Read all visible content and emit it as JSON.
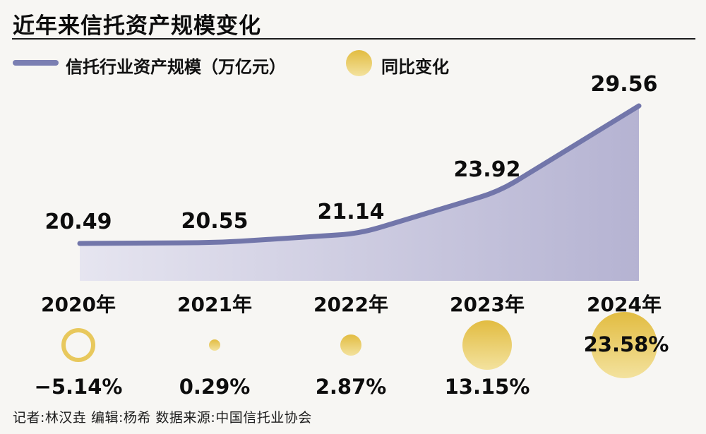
{
  "title": "近年来信托资产规模变化",
  "legend": {
    "line_label": "信托行业资产规模（万亿元）",
    "bubble_label": "同比变化"
  },
  "chart_data": {
    "type": "area",
    "categories": [
      "2020年",
      "2021年",
      "2022年",
      "2023年",
      "2024年"
    ],
    "series": [
      {
        "name": "信托行业资产规模（万亿元）",
        "type": "area-line",
        "values": [
          20.49,
          20.55,
          21.14,
          23.92,
          29.56
        ],
        "labels": [
          "20.49",
          "20.55",
          "21.14",
          "23.92",
          "29.56"
        ]
      },
      {
        "name": "同比变化",
        "type": "bubble",
        "values": [
          -5.14,
          0.29,
          2.87,
          13.15,
          23.58
        ],
        "labels": [
          "−5.14%",
          "0.29%",
          "2.87%",
          "13.15%",
          "23.58%"
        ],
        "negative_style": "hollow-ring"
      }
    ],
    "ylim": [
      18,
      30
    ],
    "grid": false,
    "legend_position": "top",
    "bubble_radius_px": [
      24,
      8,
      15,
      35,
      47
    ],
    "colors": {
      "line": "#7276aa",
      "legend_line": "#7b7fb2",
      "area_left": "#e6e5f0",
      "area_right": "#b5b3d2",
      "bubble_top": "#e2bc41",
      "bubble_bottom": "#f3e29e",
      "bubble_ring": "#e8c85c",
      "background": "#f7f6f3",
      "text": "#0d0d0d"
    }
  },
  "credit": "记者:林汉垚  编辑:杨希  数据来源:中国信托业协会"
}
